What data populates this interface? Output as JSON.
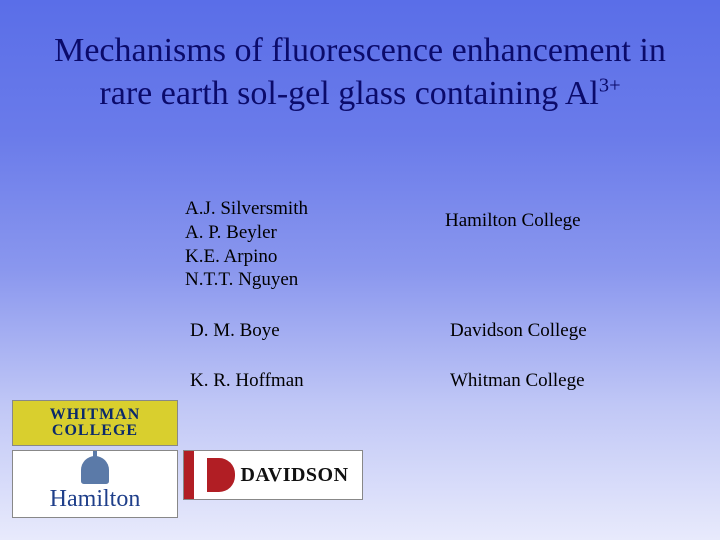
{
  "title": {
    "line": "Mechanisms of fluorescence enhancement in rare earth sol-gel glass containing Al",
    "super": "3+"
  },
  "authors_group1": [
    "A.J. Silversmith",
    "A. P. Beyler",
    "K.E. Arpino",
    "N.T.T. Nguyen"
  ],
  "affil1": "Hamilton College",
  "author2": "D. M. Boye",
  "affil2": "Davidson College",
  "author3": "K. R. Hoffman",
  "affil3": "Whitman College",
  "logos": {
    "whitman_line1": "WHITMAN",
    "whitman_line2": "COLLEGE",
    "hamilton": "Hamilton",
    "davidson": "DAVIDSON"
  },
  "colors": {
    "title": "#0b0b6b",
    "bg_top": "#5a6ee8",
    "bg_bottom": "#e8eafc",
    "whitman_bg": "#d9cf2e",
    "davidson_red": "#b11e24",
    "hamilton_blue": "#1f3f8a"
  }
}
